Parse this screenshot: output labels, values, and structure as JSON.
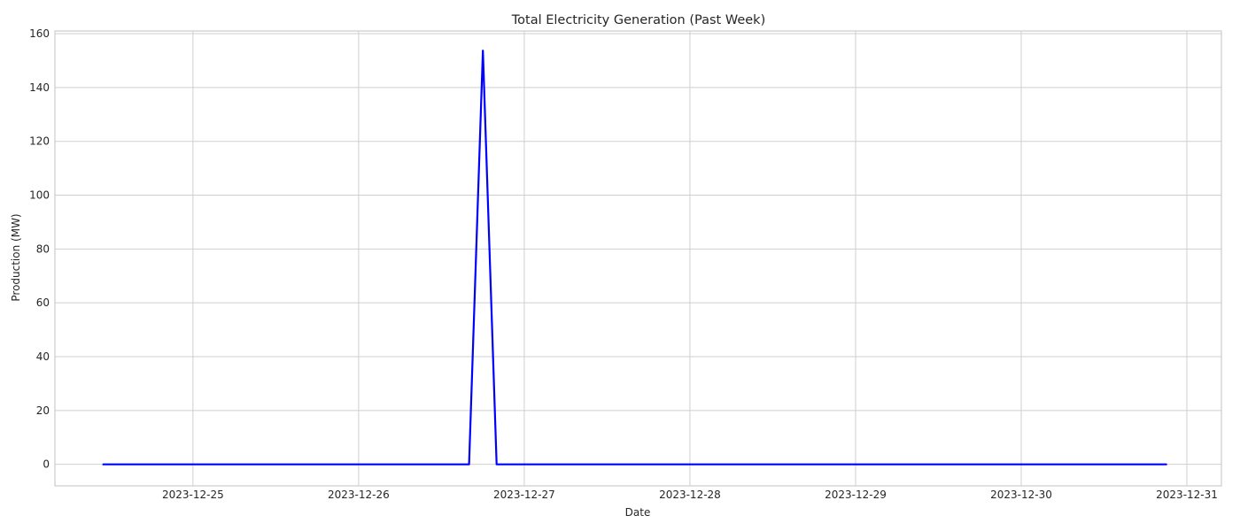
{
  "chart_data": {
    "type": "line",
    "title": "Total Electricity Generation (Past Week)",
    "xlabel": "Date",
    "ylabel": "Production (MW)",
    "x_ticks": [
      "2023-12-25",
      "2023-12-26",
      "2023-12-27",
      "2023-12-28",
      "2023-12-29",
      "2023-12-30",
      "2023-12-31"
    ],
    "xlim": [
      "2023-12-24 04:00",
      "2023-12-31 05:00"
    ],
    "y_ticks": [
      0,
      20,
      40,
      60,
      80,
      100,
      120,
      140,
      160
    ],
    "ylim": [
      -8,
      161
    ],
    "grid": true,
    "legend": "none",
    "series": [
      {
        "color": "#0000ff",
        "x": [
          "2023-12-24 11:00",
          "2023-12-26 16:00",
          "2023-12-26 18:00",
          "2023-12-26 20:00",
          "2023-12-30 21:00"
        ],
        "y": [
          0,
          0,
          153.7,
          0,
          0
        ]
      }
    ]
  }
}
